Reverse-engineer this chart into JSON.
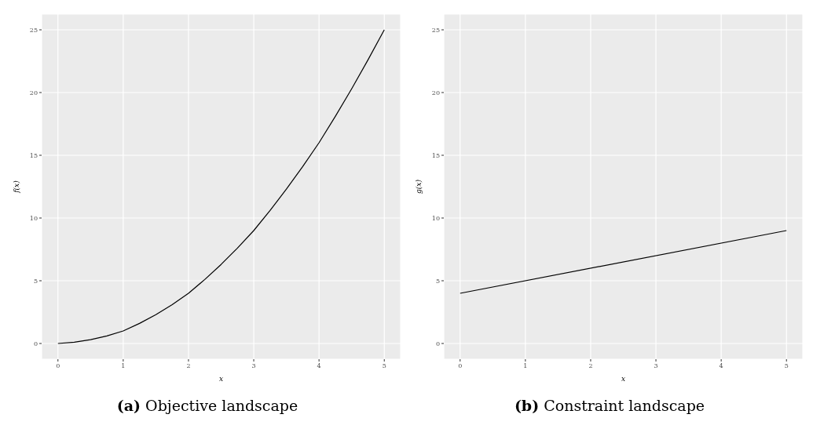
{
  "chart_data": [
    {
      "type": "line",
      "title": "(a) Objective landscape",
      "xlabel": "x",
      "ylabel": "f(x)",
      "x": [
        0,
        0.25,
        0.5,
        0.75,
        1,
        1.25,
        1.5,
        1.75,
        2,
        2.25,
        2.5,
        2.75,
        3,
        3.25,
        3.5,
        3.75,
        4,
        4.25,
        4.5,
        4.75,
        5
      ],
      "series": [
        {
          "color": "#000000",
          "values": [
            0,
            0.1,
            0.3,
            0.6,
            1,
            1.6,
            2.3,
            3.1,
            4,
            5.1,
            6.3,
            7.6,
            9,
            10.6,
            12.3,
            14.1,
            16,
            18.1,
            20.3,
            22.6,
            25
          ]
        }
      ],
      "xlim": [
        -0.25,
        5.25
      ],
      "xticks": [
        0,
        1,
        2,
        3,
        4,
        5
      ],
      "ylim": [
        -1.25,
        26.25
      ],
      "yticks": [
        0,
        5,
        10,
        15,
        20,
        25
      ],
      "grid": true
    },
    {
      "type": "line",
      "title": "(b) Constraint landscape",
      "xlabel": "x",
      "ylabel": "g(x)",
      "x": [
        0,
        5
      ],
      "series": [
        {
          "color": "#000000",
          "values": [
            4,
            9
          ]
        }
      ],
      "xlim": [
        -0.25,
        5.25
      ],
      "xticks": [
        0,
        1,
        2,
        3,
        4,
        5
      ],
      "ylim": [
        -1.25,
        26.25
      ],
      "yticks": [
        0,
        5,
        10,
        15,
        20,
        25
      ],
      "grid": true
    }
  ]
}
